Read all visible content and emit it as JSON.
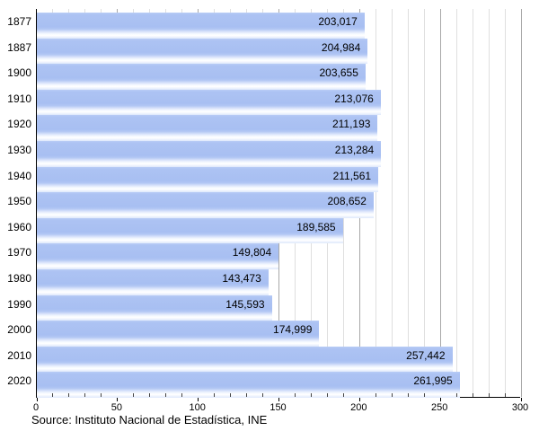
{
  "chart_data": {
    "type": "bar",
    "orientation": "horizontal",
    "title": "",
    "categories": [
      "1877",
      "1887",
      "1900",
      "1910",
      "1920",
      "1930",
      "1940",
      "1950",
      "1960",
      "1970",
      "1980",
      "1990",
      "2000",
      "2010",
      "2020"
    ],
    "values": [
      203017,
      204984,
      203655,
      213076,
      211193,
      213284,
      211561,
      208652,
      189585,
      149804,
      143473,
      145593,
      174999,
      257442,
      261995
    ],
    "value_labels": [
      "203,017",
      "204,984",
      "203,655",
      "213,076",
      "211,193",
      "213,284",
      "211,561",
      "208,652",
      "189,585",
      "149,804",
      "143,473",
      "145,593",
      "174,999",
      "257,442",
      "261,995"
    ],
    "x_axis": {
      "tick_values": [
        0,
        50,
        100,
        150,
        200,
        250,
        300
      ],
      "tick_labels": [
        "0",
        "50",
        "100",
        "150",
        "200",
        "250",
        "300"
      ],
      "minor_step": 10,
      "range": [
        0,
        300
      ],
      "value_divisor": 1000
    },
    "grid": "vertical, minor every 10, major every 50",
    "legend": "none",
    "colors": {
      "bar": "#a8bff2",
      "bar_highlight": "#ffffff",
      "grid_minor": "#dfdfdf",
      "grid_major": "#a8a8a8",
      "axis": "#000000",
      "text": "#000000"
    }
  },
  "footer": {
    "source": "Source: Instituto Nacional de Estadística, INE"
  }
}
